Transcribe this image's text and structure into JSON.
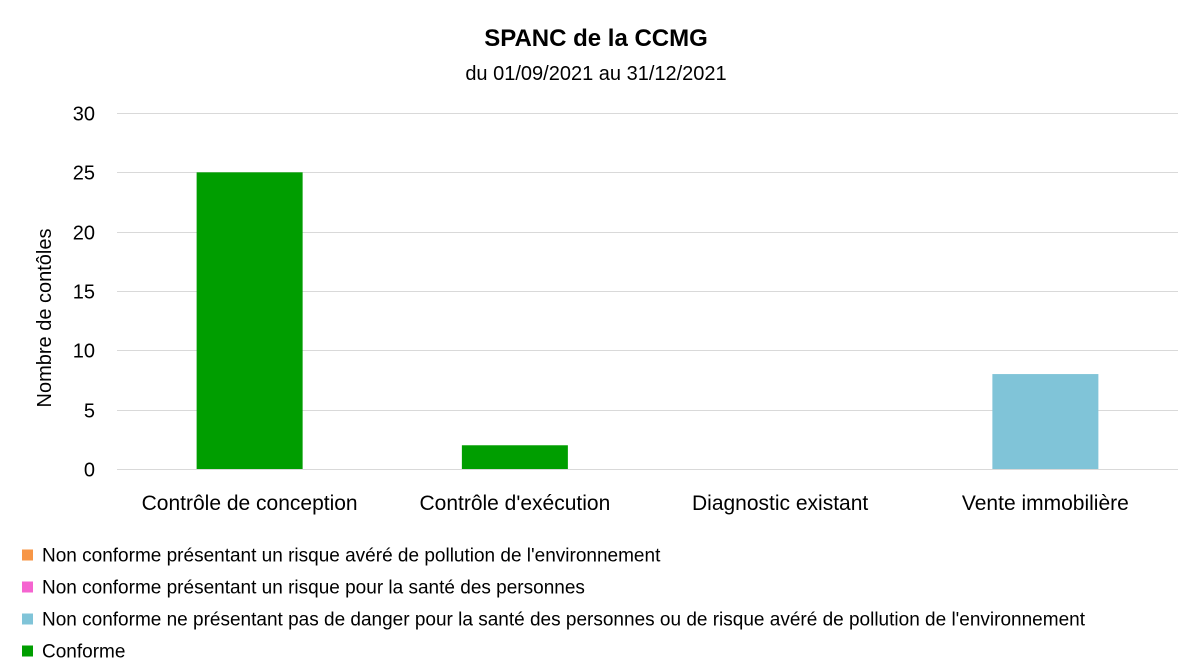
{
  "chart_data": {
    "type": "bar",
    "stacked": true,
    "title": "SPANC de la CCMG",
    "subtitle": "du 01/09/2021 au 31/12/2021",
    "ylabel": "Nombre de contôles",
    "ylim": [
      0,
      30
    ],
    "yticks": [
      0,
      5,
      10,
      15,
      20,
      25,
      30
    ],
    "grid": true,
    "legend": "bottom",
    "categories": [
      "Contrôle de conception",
      "Contrôle d'exécution",
      "Diagnostic existant",
      "Vente immobilière"
    ],
    "series": [
      {
        "name": "Non conforme présentant un risque avéré de pollution de l'environnement",
        "color": "#F79646",
        "values": [
          0,
          0,
          0,
          0
        ]
      },
      {
        "name": "Non conforme présentant un risque pour la santé des personnes",
        "color": "#F564D0",
        "values": [
          0,
          0,
          0,
          0
        ]
      },
      {
        "name": "Non conforme ne présentant pas de danger pour la santé des personnes ou de risque avéré de pollution de l'environnement",
        "color": "#80C4D8",
        "values": [
          0,
          0,
          0,
          8
        ]
      },
      {
        "name": "Conforme",
        "color": "#009E00",
        "values": [
          25,
          2,
          0,
          0
        ]
      }
    ]
  }
}
